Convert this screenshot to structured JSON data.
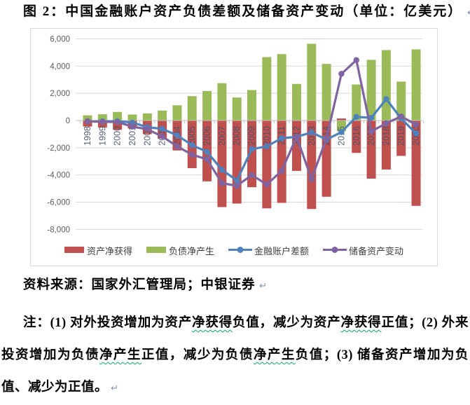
{
  "page": {
    "title": "图 2：中国金融账户资产负债差额及储备资产变动（单位：亿美元）",
    "title_pilcrow": "↵"
  },
  "source_line": {
    "text": "资料来源：国家外汇管理局；中银证券",
    "pilcrow": "↵"
  },
  "note": {
    "pilcrow": "↵",
    "segments": [
      {
        "text": "注：(1) 对外投资增加为资产",
        "wavy": false
      },
      {
        "text": "净获得",
        "wavy": true
      },
      {
        "text": "负值，减少为资产",
        "wavy": false
      },
      {
        "text": "净获得",
        "wavy": true
      },
      {
        "text": "正值；(2) 外来投资增加为负债",
        "wavy": false
      },
      {
        "text": "净产生",
        "wavy": true
      },
      {
        "text": "正值，减少为负债",
        "wavy": false
      },
      {
        "text": "净产生",
        "wavy": true
      },
      {
        "text": "负值；(3) 储备资产增加为负值、减少为正值。",
        "wavy": false
      }
    ]
  },
  "chart_data": {
    "type": "bar",
    "title": "中国金融账户资产负债差额及储备资产变动",
    "unit": "亿美元",
    "grid": "horizontal",
    "legend_position": "bottom",
    "ylim": [
      -8000,
      6000
    ],
    "ytick_step": 2000,
    "ytick_values": [
      6000,
      4000,
      2000,
      0,
      -2000,
      -4000,
      -6000,
      -8000
    ],
    "ytick_labels": [
      "6,000",
      "4,000",
      "2,000",
      "0",
      "-2,000",
      "-4,000",
      "-6,000",
      "-8,000"
    ],
    "categories": [
      "1998",
      "1999",
      "2000",
      "2001",
      "2002",
      "2003",
      "2004",
      "2005",
      "2006",
      "2007",
      "2008",
      "2009",
      "2010",
      "2011",
      "2012",
      "2013",
      "2014",
      "2015",
      "2016",
      "2017",
      "2018",
      "2019",
      "2020"
    ],
    "series": [
      {
        "name": "资产净获得",
        "type": "bar",
        "color": "#C0504D",
        "values": [
          -440,
          -510,
          -680,
          -580,
          -1000,
          -1330,
          -2200,
          -3500,
          -4470,
          -6360,
          -6100,
          -4900,
          -6450,
          -6050,
          -3700,
          -6500,
          -5600,
          150,
          -2380,
          -4270,
          -3600,
          -2600,
          -6270
        ]
      },
      {
        "name": "负债净产生",
        "type": "bar",
        "color": "#9BBB59",
        "values": [
          380,
          460,
          630,
          440,
          525,
          730,
          1120,
          1790,
          2170,
          2740,
          1690,
          2240,
          4660,
          4880,
          2690,
          5640,
          4160,
          -800,
          2650,
          4460,
          5175,
          2860,
          5225
        ]
      },
      {
        "name": "金融账户差额",
        "type": "line",
        "color": "#4F81BD",
        "values": [
          -65,
          -55,
          -50,
          -145,
          -490,
          -610,
          -1090,
          -1810,
          -2300,
          -3620,
          -4410,
          -2100,
          -1900,
          -1300,
          -1200,
          -870,
          -1400,
          -850,
          270,
          195,
          1575,
          150,
          -950
        ]
      },
      {
        "name": "储备资产变动",
        "type": "line",
        "color": "#8064A2",
        "values": [
          -50,
          -95,
          -105,
          -450,
          -640,
          -1170,
          -1900,
          -2510,
          -2850,
          -4600,
          -4800,
          -4000,
          -4700,
          -3700,
          -1200,
          -4300,
          -1300,
          3430,
          4440,
          -800,
          -200,
          300,
          -300
        ]
      }
    ],
    "colors": {
      "grid": "#D9D9D9",
      "axis": "#BFBFBF",
      "frame": "#D9D9D9",
      "ylabel": "#595959",
      "xlabel": "#44546A",
      "legend_text": "#3F3F3F"
    }
  }
}
